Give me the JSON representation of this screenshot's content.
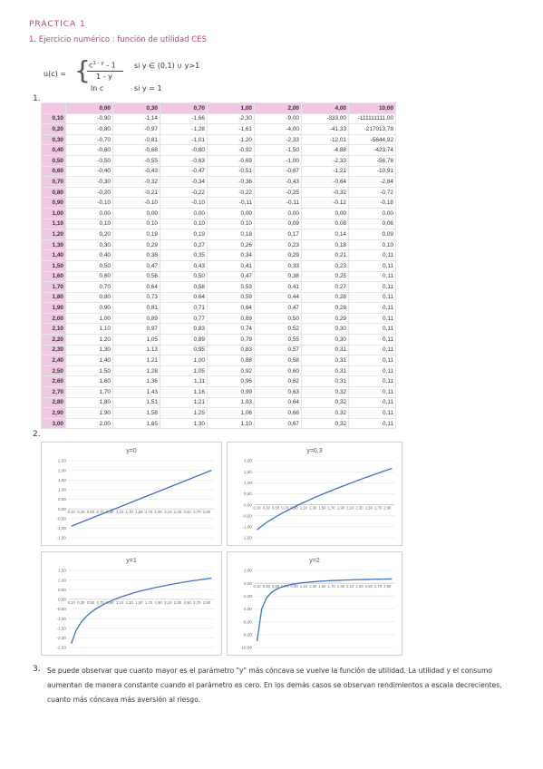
{
  "header": {
    "title": "PRÁCTICA 1",
    "subtitle": "1. Ejercicio numérico : función de utilidad CES"
  },
  "formula": {
    "lhs": "u(c) =",
    "numerator": "c",
    "exponent": "1 - y",
    "minus": "- 1",
    "denominator": "1 - y",
    "case1": "si y ∈ (0,1) ∪ y>1",
    "case2_expr": "ln c",
    "case2": "si y = 1"
  },
  "sections": [
    "1.",
    "2.",
    "3."
  ],
  "table": {
    "columns": [
      "0,00",
      "0,30",
      "0,70",
      "1,00",
      "2,00",
      "4,00",
      "10,00"
    ],
    "rows": [
      [
        "0,10",
        "-0,90",
        "-1,14",
        "-1,66",
        "-2,30",
        "-9,00",
        "-333,00",
        "-111111111,00"
      ],
      [
        "0,20",
        "-0,80",
        "-0,97",
        "-1,28",
        "-1,61",
        "-4,00",
        "-41,33",
        "-217013,78"
      ],
      [
        "0,30",
        "-0,70",
        "-0,81",
        "-1,01",
        "-1,20",
        "-2,33",
        "-12,01",
        "-5644,92"
      ],
      [
        "0,40",
        "-0,60",
        "-0,68",
        "-0,80",
        "-0,92",
        "-1,50",
        "-4,88",
        "-423,74"
      ],
      [
        "0,50",
        "-0,50",
        "-0,55",
        "-0,63",
        "-0,69",
        "-1,00",
        "-2,33",
        "-56,78"
      ],
      [
        "0,60",
        "-0,40",
        "-0,43",
        "-0,47",
        "-0,51",
        "-0,67",
        "-1,21",
        "-10,91"
      ],
      [
        "0,70",
        "-0,30",
        "-0,32",
        "-0,34",
        "-0,36",
        "-0,43",
        "-0,64",
        "-2,64"
      ],
      [
        "0,80",
        "-0,20",
        "-0,21",
        "-0,22",
        "-0,22",
        "-0,25",
        "-0,32",
        "-0,72"
      ],
      [
        "0,90",
        "-0,10",
        "-0,10",
        "-0,10",
        "-0,11",
        "-0,11",
        "-0,12",
        "-0,18"
      ],
      [
        "1,00",
        "0,00",
        "0,00",
        "0,00",
        "0,00",
        "0,00",
        "0,00",
        "0,00"
      ],
      [
        "1,10",
        "0,10",
        "0,10",
        "0,10",
        "0,10",
        "0,09",
        "0,08",
        "0,06"
      ],
      [
        "1,20",
        "0,20",
        "0,19",
        "0,19",
        "0,18",
        "0,17",
        "0,14",
        "0,09"
      ],
      [
        "1,30",
        "0,30",
        "0,29",
        "0,27",
        "0,26",
        "0,23",
        "0,18",
        "0,10"
      ],
      [
        "1,40",
        "0,40",
        "0,38",
        "0,35",
        "0,34",
        "0,29",
        "0,21",
        "0,11"
      ],
      [
        "1,50",
        "0,50",
        "0,47",
        "0,43",
        "0,41",
        "0,33",
        "0,23",
        "0,11"
      ],
      [
        "1,60",
        "0,60",
        "0,56",
        "0,50",
        "0,47",
        "0,38",
        "0,25",
        "0,11"
      ],
      [
        "1,70",
        "0,70",
        "0,64",
        "0,58",
        "0,53",
        "0,41",
        "0,27",
        "0,11"
      ],
      [
        "1,80",
        "0,80",
        "0,73",
        "0,64",
        "0,59",
        "0,44",
        "0,28",
        "0,11"
      ],
      [
        "1,90",
        "0,90",
        "0,81",
        "0,71",
        "0,64",
        "0,47",
        "0,28",
        "0,11"
      ],
      [
        "2,00",
        "1,00",
        "0,89",
        "0,77",
        "0,69",
        "0,50",
        "0,29",
        "0,11"
      ],
      [
        "2,10",
        "1,10",
        "0,97",
        "0,83",
        "0,74",
        "0,52",
        "0,30",
        "0,11"
      ],
      [
        "2,20",
        "1,20",
        "1,05",
        "0,89",
        "0,79",
        "0,55",
        "0,30",
        "0,11"
      ],
      [
        "2,30",
        "1,30",
        "1,13",
        "0,95",
        "0,83",
        "0,57",
        "0,31",
        "0,11"
      ],
      [
        "2,40",
        "1,40",
        "1,21",
        "1,00",
        "0,88",
        "0,58",
        "0,31",
        "0,11"
      ],
      [
        "2,50",
        "1,50",
        "1,28",
        "1,05",
        "0,92",
        "0,60",
        "0,31",
        "0,11"
      ],
      [
        "2,60",
        "1,60",
        "1,36",
        "1,11",
        "0,96",
        "0,62",
        "0,31",
        "0,11"
      ],
      [
        "2,70",
        "1,70",
        "1,43",
        "1,16",
        "0,99",
        "0,63",
        "0,32",
        "0,11"
      ],
      [
        "2,80",
        "1,80",
        "1,51",
        "1,21",
        "1,03",
        "0,64",
        "0,32",
        "0,11"
      ],
      [
        "2,90",
        "1,90",
        "1,58",
        "1,25",
        "1,06",
        "0,66",
        "0,32",
        "0,11"
      ],
      [
        "3,00",
        "2,00",
        "1,65",
        "1,30",
        "1,10",
        "0,67",
        "0,32",
        "0,11"
      ]
    ]
  },
  "chart_data": [
    {
      "type": "line",
      "title": "y=0",
      "categories": [
        "0,10",
        null,
        "0,30",
        null,
        "0,50",
        null,
        "0,70",
        null,
        "0,90",
        null,
        "1,10",
        null,
        "1,30",
        null,
        "1,50",
        null,
        "1,70",
        null,
        "1,90",
        null,
        "2,10",
        null,
        "2,30",
        null,
        "2,50",
        null,
        "2,70",
        null,
        "2,90",
        null
      ],
      "series": [
        {
          "color": "#4472c4",
          "values": [
            -0.9,
            -0.8,
            -0.7,
            -0.6,
            -0.5,
            -0.4,
            -0.3,
            -0.2,
            -0.1,
            0,
            0.1,
            0.2,
            0.3,
            0.4,
            0.5,
            0.6,
            0.7,
            0.8,
            0.9,
            1.0,
            1.1,
            1.2,
            1.3,
            1.4,
            1.5,
            1.6,
            1.7,
            1.8,
            1.9,
            2.0
          ]
        }
      ],
      "ylim": [
        -1.5,
        2.5
      ],
      "yticks": [
        {
          "value": 2.5,
          "label": "2,50"
        },
        {
          "value": 2,
          "label": "2,00"
        },
        {
          "value": 1.5,
          "label": "1,50"
        },
        {
          "value": 1,
          "label": "1,00"
        },
        {
          "value": 0.5,
          "label": "0,50"
        },
        {
          "value": 0,
          "label": "0,00"
        },
        {
          "value": -0.5,
          "label": "-0,50"
        },
        {
          "value": -1,
          "label": "-1,00"
        },
        {
          "value": -1.5,
          "label": "-1,50"
        }
      ],
      "grid": true
    },
    {
      "type": "line",
      "title": "y=0,3",
      "categories": [
        "0,10",
        null,
        "0,30",
        null,
        "0,50",
        null,
        "0,70",
        null,
        "0,90",
        null,
        "1,10",
        null,
        "1,30",
        null,
        "1,50",
        null,
        "1,70",
        null,
        "1,90",
        null,
        "2,10",
        null,
        "2,30",
        null,
        "2,50",
        null,
        "2,70",
        null,
        "2,90",
        null
      ],
      "series": [
        {
          "color": "#4472c4",
          "values": [
            -1.14,
            -0.97,
            -0.81,
            -0.68,
            -0.55,
            -0.43,
            -0.32,
            -0.21,
            -0.1,
            0,
            0.1,
            0.19,
            0.29,
            0.38,
            0.47,
            0.56,
            0.64,
            0.73,
            0.81,
            0.89,
            0.97,
            1.05,
            1.13,
            1.21,
            1.28,
            1.36,
            1.43,
            1.51,
            1.58,
            1.65
          ]
        }
      ],
      "ylim": [
        -1.5,
        2
      ],
      "yticks": [
        {
          "value": 2,
          "label": "2,00"
        },
        {
          "value": 1.5,
          "label": "1,50"
        },
        {
          "value": 1,
          "label": "1,00"
        },
        {
          "value": 0.5,
          "label": "0,50"
        },
        {
          "value": 0,
          "label": "0,00"
        },
        {
          "value": -0.5,
          "label": "-0,50"
        },
        {
          "value": -1,
          "label": "-1,00"
        },
        {
          "value": -1.5,
          "label": "-1,50"
        }
      ],
      "grid": true
    },
    {
      "type": "line",
      "title": "y=1",
      "categories": [
        "0,10",
        null,
        "0,30",
        null,
        "0,50",
        null,
        "0,70",
        null,
        "0,90",
        null,
        "1,10",
        null,
        "1,30",
        null,
        "1,50",
        null,
        "1,70",
        null,
        "1,90",
        null,
        "2,10",
        null,
        "2,30",
        null,
        "2,50",
        null,
        "2,70",
        null,
        "2,90",
        null
      ],
      "series": [
        {
          "color": "#4472c4",
          "values": [
            -2.3,
            -1.61,
            -1.2,
            -0.92,
            -0.69,
            -0.51,
            -0.36,
            -0.22,
            -0.11,
            0,
            0.1,
            0.18,
            0.26,
            0.34,
            0.41,
            0.47,
            0.53,
            0.59,
            0.64,
            0.69,
            0.74,
            0.79,
            0.83,
            0.88,
            0.92,
            0.96,
            0.99,
            1.03,
            1.06,
            1.1
          ]
        }
      ],
      "ylim": [
        -2.5,
        1.5
      ],
      "yticks": [
        {
          "value": 1.5,
          "label": "1,50"
        },
        {
          "value": 1,
          "label": "1,00"
        },
        {
          "value": 0.5,
          "label": "0,50"
        },
        {
          "value": 0,
          "label": "0,00"
        },
        {
          "value": -0.5,
          "label": "-0,50"
        },
        {
          "value": -1,
          "label": "-1,00"
        },
        {
          "value": -1.5,
          "label": "-1,50"
        },
        {
          "value": -2,
          "label": "-2,00"
        },
        {
          "value": -2.5,
          "label": "-2,50"
        }
      ],
      "grid": true
    },
    {
      "type": "line",
      "title": "y=2",
      "categories": [
        "0,10",
        null,
        "0,30",
        null,
        "0,50",
        null,
        "0,70",
        null,
        "0,90",
        null,
        "1,10",
        null,
        "1,30",
        null,
        "1,50",
        null,
        "1,70",
        null,
        "1,90",
        null,
        "2,10",
        null,
        "2,30",
        null,
        "2,50",
        null,
        "2,70",
        null,
        "2,90",
        null
      ],
      "series": [
        {
          "color": "#4472c4",
          "values": [
            -9,
            -4,
            -2.33,
            -1.5,
            -1,
            -0.67,
            -0.43,
            -0.25,
            -0.11,
            0,
            0.09,
            0.17,
            0.23,
            0.29,
            0.33,
            0.38,
            0.41,
            0.44,
            0.47,
            0.5,
            0.52,
            0.55,
            0.57,
            0.58,
            0.6,
            0.62,
            0.63,
            0.64,
            0.66,
            0.67
          ]
        }
      ],
      "ylim": [
        -10,
        2
      ],
      "yticks": [
        {
          "value": 2,
          "label": "2,00"
        },
        {
          "value": 0,
          "label": "0,00"
        },
        {
          "value": -2,
          "label": "-2,00"
        },
        {
          "value": -4,
          "label": "-4,00"
        },
        {
          "value": -6,
          "label": "-6,00"
        },
        {
          "value": -8,
          "label": "-8,00"
        },
        {
          "value": -10,
          "label": "-10,00"
        }
      ],
      "grid": true
    }
  ],
  "conclusion": "Se puede observar que cuanto mayor es el parámetro \"y\" más cóncava se vuelve la función de utilidad. La utilidad y el consumo aumentan de manera constante cuando el parámetro es cero. En los demás casos se observan rendimientos a escala decrecientes, cuanto más cóncava más aversión al riesgo."
}
